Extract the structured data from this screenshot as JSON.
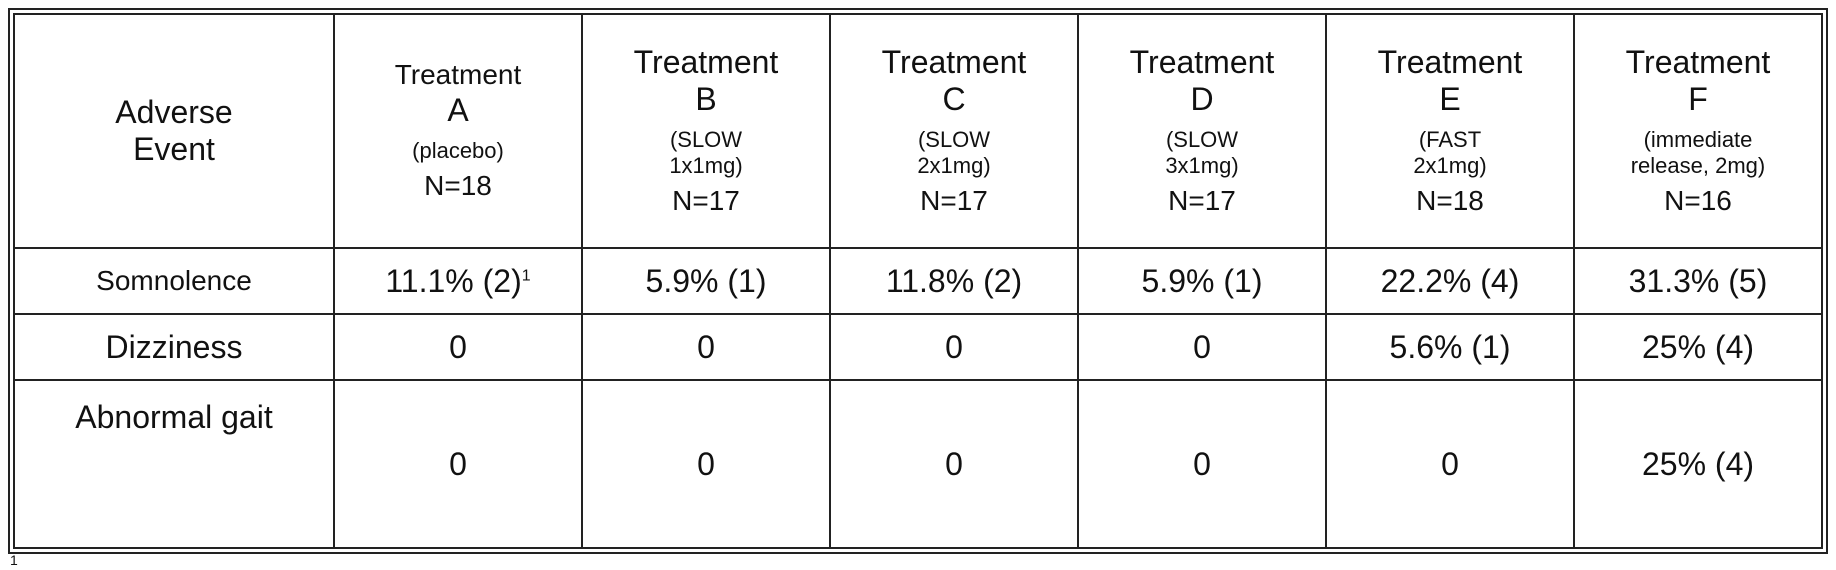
{
  "header": {
    "adverse_line1": "Adverse",
    "adverse_line2": "Event",
    "treatments": [
      {
        "name": "Treatment",
        "letter": "A",
        "desc_line1": "(placebo)",
        "desc_line2": "",
        "n": "N=18"
      },
      {
        "name": "Treatment",
        "letter": "B",
        "desc_line1": "(SLOW",
        "desc_line2": "1x1mg)",
        "n": "N=17"
      },
      {
        "name": "Treatment",
        "letter": "C",
        "desc_line1": "(SLOW",
        "desc_line2": "2x1mg)",
        "n": "N=17"
      },
      {
        "name": "Treatment",
        "letter": "D",
        "desc_line1": "(SLOW",
        "desc_line2": "3x1mg)",
        "n": "N=17"
      },
      {
        "name": "Treatment",
        "letter": "E",
        "desc_line1": "(FAST",
        "desc_line2": "2x1mg)",
        "n": "N=18"
      },
      {
        "name": "Treatment",
        "letter": "F",
        "desc_line1": "(immediate",
        "desc_line2": "release, 2mg)",
        "n": "N=16"
      }
    ]
  },
  "rows": [
    {
      "event": "Somnolence",
      "values": [
        "11.1% (2)",
        "5.9% (1)",
        "11.8% (2)",
        "5.9% (1)",
        "22.2% (4)",
        "31.3% (5)"
      ],
      "first_sup": "1"
    },
    {
      "event": "Dizziness",
      "values": [
        "0",
        "0",
        "0",
        "0",
        "5.6% (1)",
        "25% (4)"
      ]
    },
    {
      "event": "Abnormal gait",
      "values": [
        "0",
        "0",
        "0",
        "0",
        "0",
        "25% (4)"
      ]
    }
  ],
  "footnote_mark": "1"
}
